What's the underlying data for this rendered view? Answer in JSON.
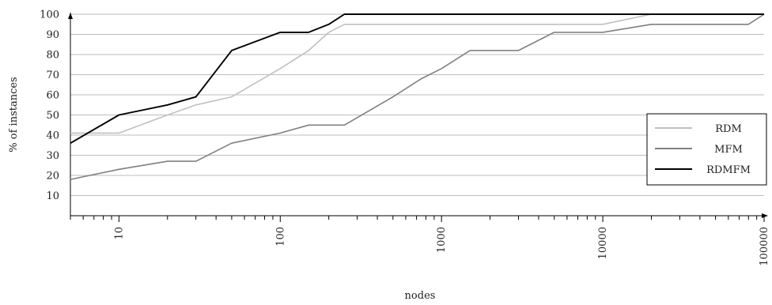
{
  "chart_data": {
    "type": "line",
    "title": "",
    "xlabel": "nodes",
    "ylabel": "% of instances",
    "x_scale": "log",
    "xlim": [
      5,
      100000
    ],
    "ylim": [
      0,
      100
    ],
    "x_ticks": [
      10,
      100,
      1000,
      10000,
      100000
    ],
    "x_tick_labels": [
      "10",
      "100",
      "1000",
      "10000",
      "100000"
    ],
    "y_ticks": [
      10,
      20,
      30,
      40,
      50,
      60,
      70,
      80,
      90,
      100
    ],
    "y_tick_labels": [
      "10",
      "20",
      "30",
      "40",
      "50",
      "60",
      "70",
      "80",
      "90",
      "100"
    ],
    "grid": "horizontal",
    "legend_position": "right",
    "series": [
      {
        "name": "RDM",
        "color": "#c0c0c0",
        "x": [
          5,
          10,
          20,
          30,
          50,
          100,
          150,
          200,
          250,
          500,
          1000,
          2000,
          5000,
          10000,
          20000,
          50000,
          100000
        ],
        "y": [
          41,
          41,
          50,
          55,
          59,
          73,
          82,
          91,
          95,
          95,
          95,
          95,
          95,
          95,
          100,
          100,
          100
        ]
      },
      {
        "name": "MFM",
        "color": "#808080",
        "x": [
          5,
          10,
          20,
          30,
          50,
          100,
          150,
          250,
          500,
          750,
          1000,
          1500,
          3000,
          5000,
          10000,
          20000,
          80000,
          100000
        ],
        "y": [
          18,
          23,
          27,
          27,
          36,
          41,
          45,
          45,
          59,
          68,
          73,
          82,
          82,
          91,
          91,
          95,
          95,
          100
        ]
      },
      {
        "name": "RDMFM",
        "color": "#000000",
        "x": [
          5,
          10,
          20,
          30,
          50,
          100,
          150,
          200,
          250,
          500,
          1000,
          10000,
          100000
        ],
        "y": [
          36,
          50,
          55,
          59,
          82,
          91,
          91,
          95,
          100,
          100,
          100,
          100,
          100
        ]
      }
    ]
  }
}
